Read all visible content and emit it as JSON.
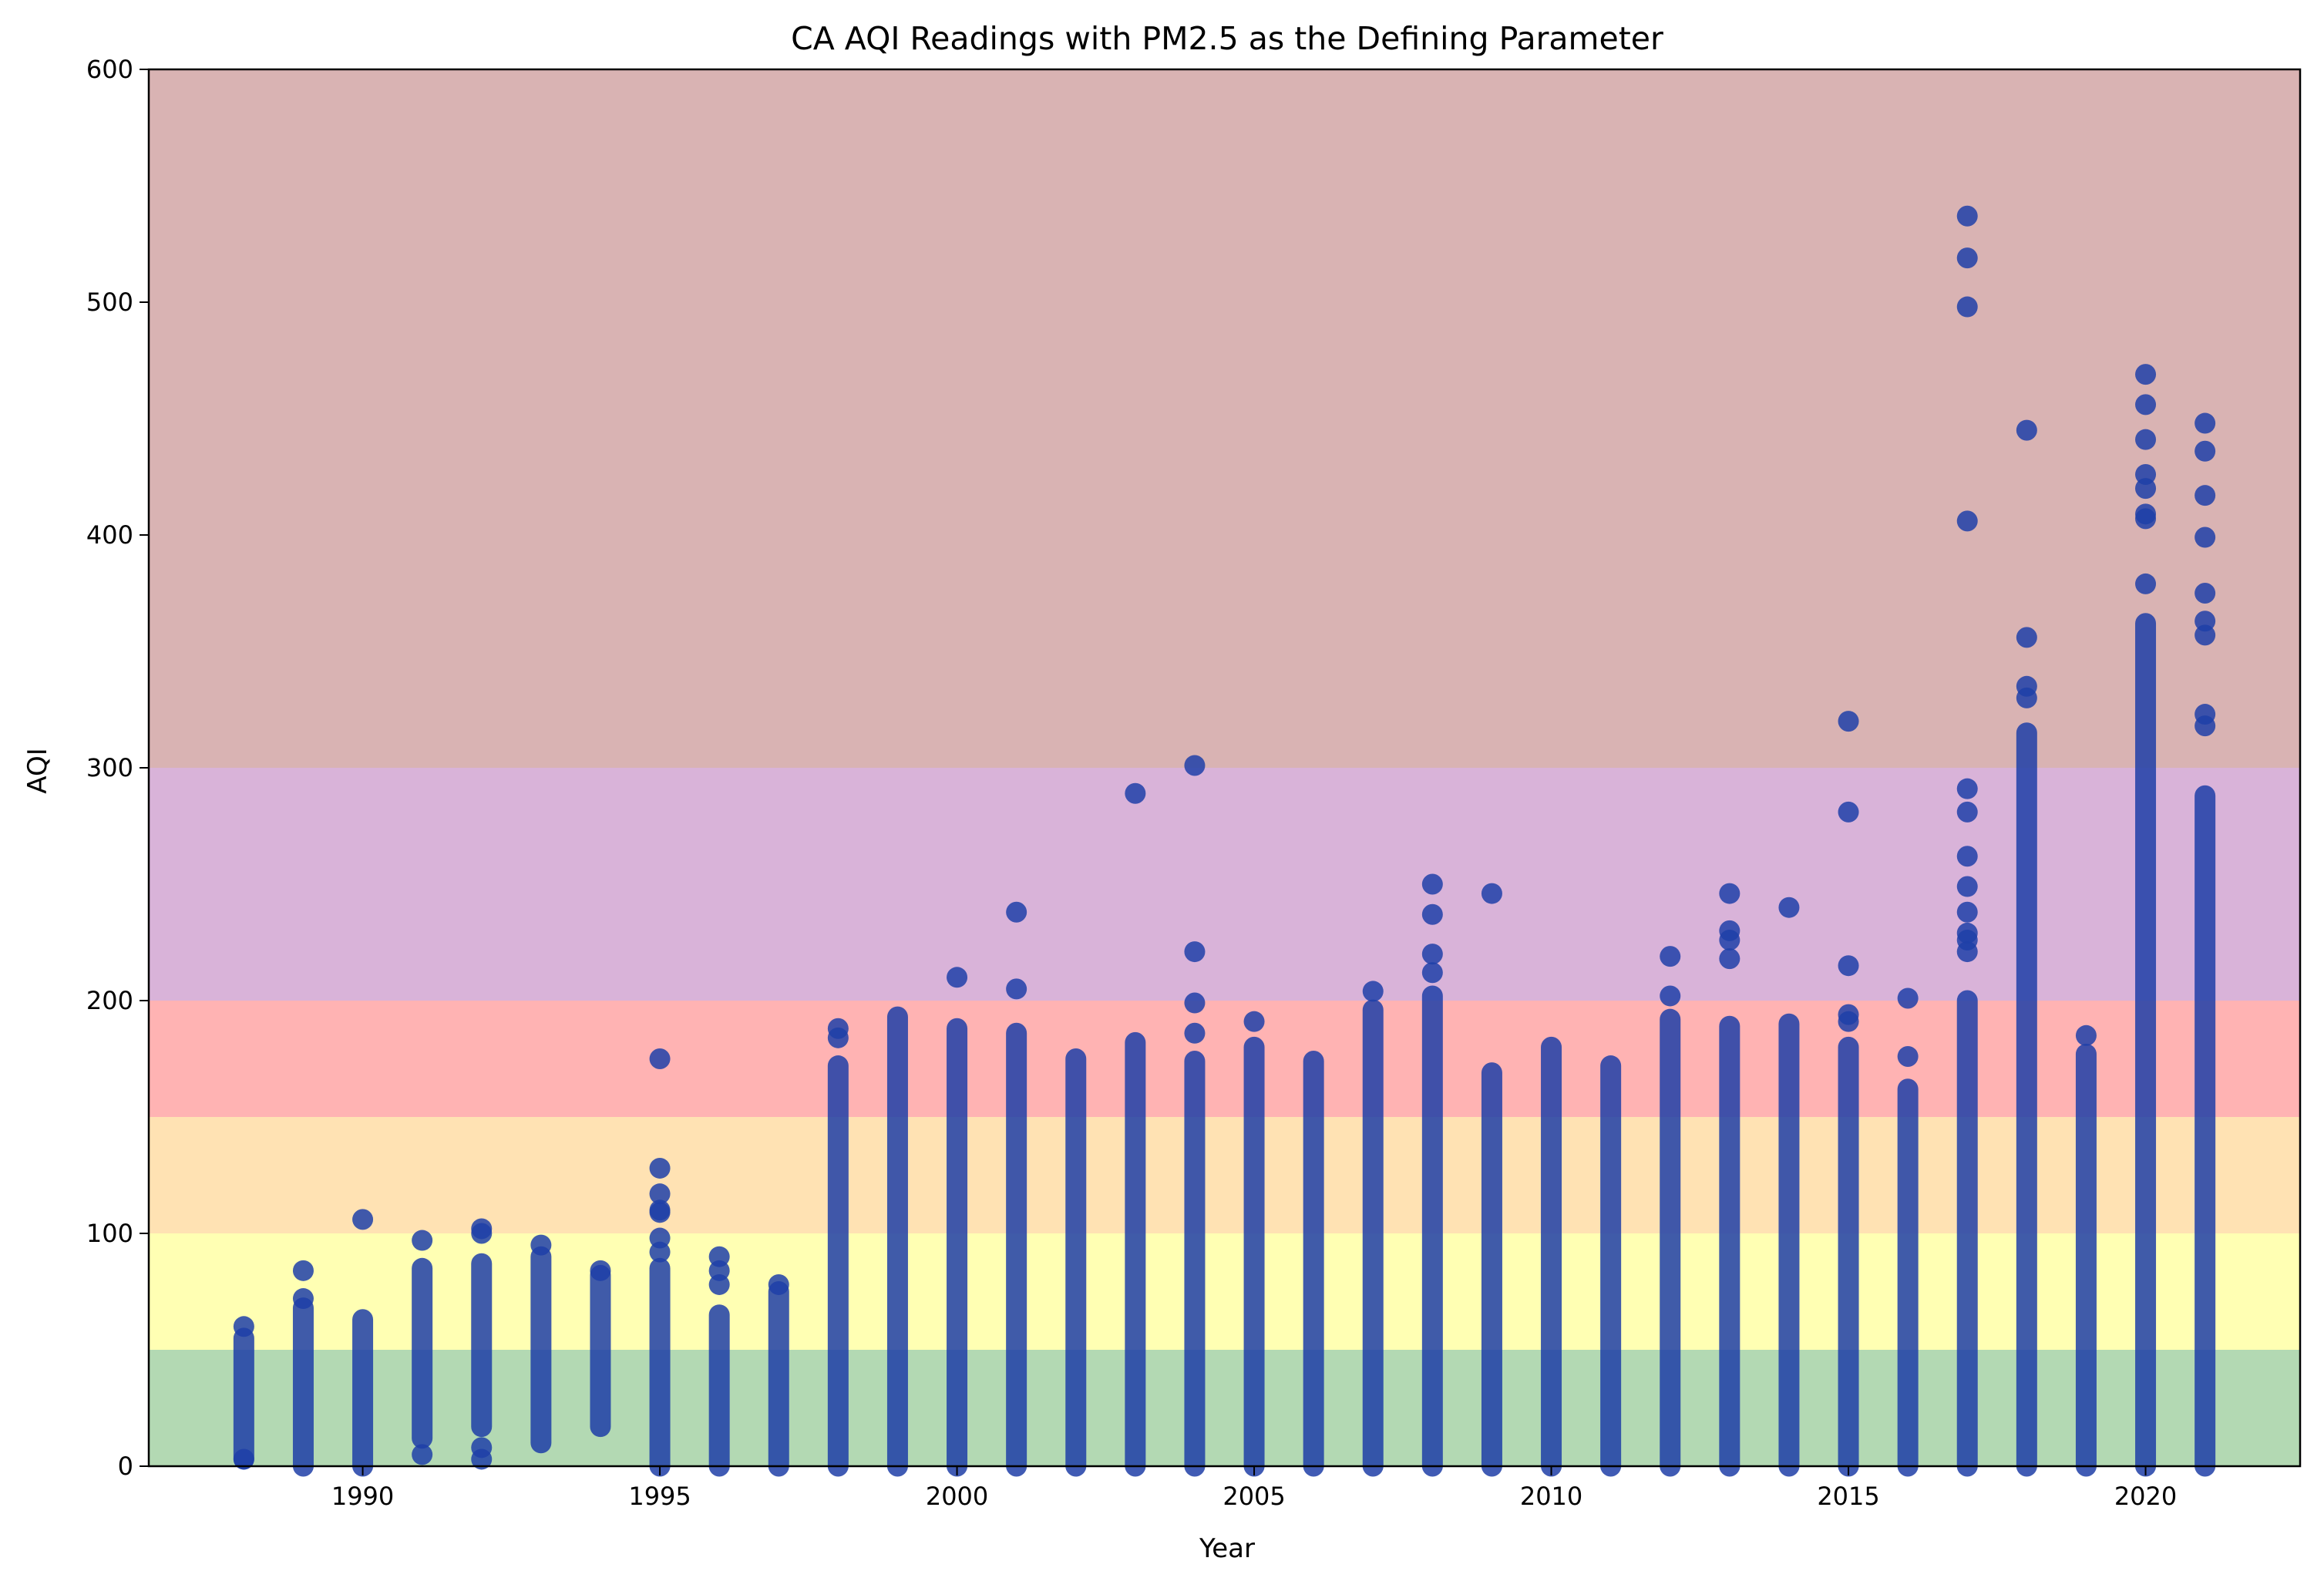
{
  "chart_data": {
    "type": "scatter",
    "title": "CA AQI Readings with PM2.5 as the Defining Parameter",
    "xlabel": "Year",
    "ylabel": "AQI",
    "xlim": [
      1986.4,
      2022.6
    ],
    "ylim": [
      0,
      600
    ],
    "x_ticks": [
      1990,
      1995,
      2000,
      2005,
      2010,
      2015,
      2020
    ],
    "y_ticks": [
      0,
      100,
      200,
      300,
      400,
      500,
      600
    ],
    "grid": false,
    "legend": "none",
    "point_color": "#1f3fa8",
    "point_alpha": 0.85,
    "aqi_bands": [
      {
        "from": 0,
        "to": 50,
        "color": "#b3d9b3"
      },
      {
        "from": 50,
        "to": 100,
        "color": "#ffffb3"
      },
      {
        "from": 100,
        "to": 150,
        "color": "#ffe2b3"
      },
      {
        "from": 150,
        "to": 200,
        "color": "#ffb3b3"
      },
      {
        "from": 200,
        "to": 300,
        "color": "#d9b3d9"
      },
      {
        "from": 300,
        "to": 600,
        "color": "#d9b3b3"
      }
    ],
    "years": [
      {
        "x": 1988,
        "continuous": [
          3,
          55
        ],
        "points": [
          60,
          3
        ]
      },
      {
        "x": 1989,
        "continuous": [
          0,
          68
        ],
        "points": [
          72,
          84
        ]
      },
      {
        "x": 1990,
        "continuous": [
          0,
          63
        ],
        "points": [
          106
        ]
      },
      {
        "x": 1991,
        "continuous": [
          12,
          85
        ],
        "points": [
          5,
          97
        ]
      },
      {
        "x": 1992,
        "continuous": [
          17,
          87
        ],
        "points": [
          3,
          8,
          100,
          102
        ]
      },
      {
        "x": 1993,
        "continuous": [
          10,
          90
        ],
        "points": [
          95
        ]
      },
      {
        "x": 1994,
        "continuous": [
          17,
          82
        ],
        "points": [
          84
        ]
      },
      {
        "x": 1995,
        "continuous": [
          0,
          85
        ],
        "points": [
          92,
          98,
          109,
          110,
          117,
          128,
          175
        ]
      },
      {
        "x": 1996,
        "continuous": [
          0,
          65
        ],
        "points": [
          78,
          84,
          90
        ]
      },
      {
        "x": 1997,
        "continuous": [
          0,
          75
        ],
        "points": [
          78
        ]
      },
      {
        "x": 1998,
        "continuous": [
          0,
          172
        ],
        "points": [
          184,
          188
        ]
      },
      {
        "x": 1999,
        "continuous": [
          0,
          193
        ],
        "points": []
      },
      {
        "x": 2000,
        "continuous": [
          0,
          188
        ],
        "points": [
          210
        ]
      },
      {
        "x": 2001,
        "continuous": [
          0,
          186
        ],
        "points": [
          205,
          238
        ]
      },
      {
        "x": 2002,
        "continuous": [
          0,
          175
        ],
        "points": []
      },
      {
        "x": 2003,
        "continuous": [
          0,
          182
        ],
        "points": [
          289
        ]
      },
      {
        "x": 2004,
        "continuous": [
          0,
          174
        ],
        "points": [
          186,
          199,
          221,
          301
        ]
      },
      {
        "x": 2005,
        "continuous": [
          0,
          180
        ],
        "points": [
          191
        ]
      },
      {
        "x": 2006,
        "continuous": [
          0,
          174
        ],
        "points": []
      },
      {
        "x": 2007,
        "continuous": [
          0,
          196
        ],
        "points": [
          204
        ]
      },
      {
        "x": 2008,
        "continuous": [
          0,
          202
        ],
        "points": [
          212,
          220,
          237,
          250
        ]
      },
      {
        "x": 2009,
        "continuous": [
          0,
          169
        ],
        "points": [
          246
        ]
      },
      {
        "x": 2010,
        "continuous": [
          0,
          180
        ],
        "points": []
      },
      {
        "x": 2011,
        "continuous": [
          0,
          172
        ],
        "points": []
      },
      {
        "x": 2012,
        "continuous": [
          0,
          192
        ],
        "points": [
          202,
          219
        ]
      },
      {
        "x": 2013,
        "continuous": [
          0,
          189
        ],
        "points": [
          218,
          226,
          230,
          246
        ]
      },
      {
        "x": 2014,
        "continuous": [
          0,
          190
        ],
        "points": [
          240
        ]
      },
      {
        "x": 2015,
        "continuous": [
          0,
          180
        ],
        "points": [
          191,
          194,
          215,
          281,
          320
        ]
      },
      {
        "x": 2016,
        "continuous": [
          0,
          162
        ],
        "points": [
          176,
          201
        ]
      },
      {
        "x": 2017,
        "continuous": [
          0,
          200
        ],
        "points": [
          221,
          226,
          229,
          238,
          249,
          262,
          281,
          291,
          406,
          498,
          519,
          537
        ]
      },
      {
        "x": 2018,
        "continuous": [
          0,
          315
        ],
        "points": [
          330,
          335,
          356,
          445
        ]
      },
      {
        "x": 2019,
        "continuous": [
          0,
          177
        ],
        "points": [
          185
        ]
      },
      {
        "x": 2020,
        "continuous": [
          0,
          362
        ],
        "points": [
          379,
          407,
          409,
          420,
          426,
          441,
          456,
          469
        ]
      },
      {
        "x": 2021,
        "continuous": [
          0,
          288
        ],
        "points": [
          318,
          323,
          357,
          363,
          375,
          399,
          417,
          436,
          448
        ]
      }
    ]
  }
}
